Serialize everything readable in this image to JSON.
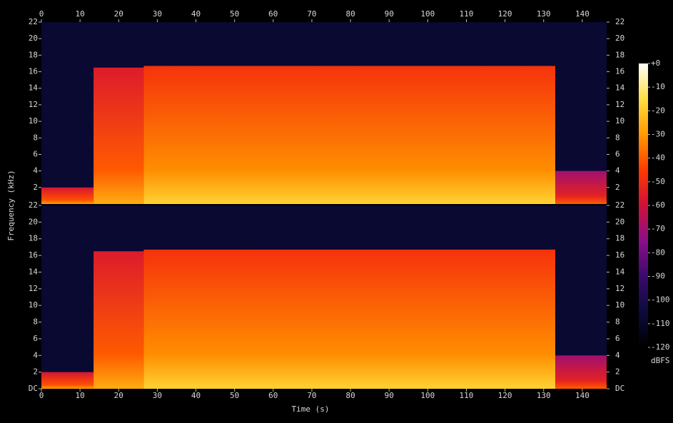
{
  "chart_data": {
    "type": "spectrogram",
    "x_label": "Time (s)",
    "y_label": "Frequency (kHz)",
    "xlim": [
      0,
      146.3
    ],
    "xticks": [
      0,
      10,
      20,
      30,
      40,
      50,
      60,
      70,
      80,
      90,
      100,
      110,
      120,
      130,
      140
    ],
    "ylim": [
      0,
      22
    ],
    "colormap": [
      "#000000",
      "#0b0b3d",
      "#3a0a6c",
      "#8a0f8a",
      "#d0103a",
      "#ff3a00",
      "#ff9a00",
      "#ffe040",
      "#ffffff"
    ],
    "panels": [
      {
        "yticks": [
          2,
          4,
          6,
          8,
          10,
          12,
          14,
          16,
          18,
          20,
          22
        ],
        "segments": [
          {
            "start": 0,
            "end": 13.5,
            "top": 2,
            "level": -50
          },
          {
            "start": 13.5,
            "end": 26.5,
            "top": 16.5,
            "level": -48
          },
          {
            "start": 26.5,
            "end": 133,
            "top": 16.7,
            "level": -40
          },
          {
            "start": 133,
            "end": 146.3,
            "top": 4,
            "level": -62
          }
        ]
      },
      {
        "yticks": [
          {
            "value": 0,
            "label": "DC"
          },
          2,
          4,
          6,
          8,
          10,
          12,
          14,
          16,
          18,
          20,
          22
        ],
        "segments": [
          {
            "start": 0,
            "end": 13.5,
            "top": 2,
            "level": -50
          },
          {
            "start": 13.5,
            "end": 26.5,
            "top": 16.5,
            "level": -48
          },
          {
            "start": 26.5,
            "end": 133,
            "top": 16.7,
            "level": -40
          },
          {
            "start": 133,
            "end": 146.3,
            "top": 4,
            "level": -62
          }
        ]
      }
    ],
    "colorbar": {
      "label": "dBFS",
      "lim": [
        -120,
        0
      ],
      "ticks": [
        {
          "value": 0,
          "label": "+0"
        },
        -10,
        -20,
        -30,
        -40,
        -50,
        -60,
        -70,
        -80,
        -90,
        -100,
        -110,
        -120
      ]
    }
  }
}
